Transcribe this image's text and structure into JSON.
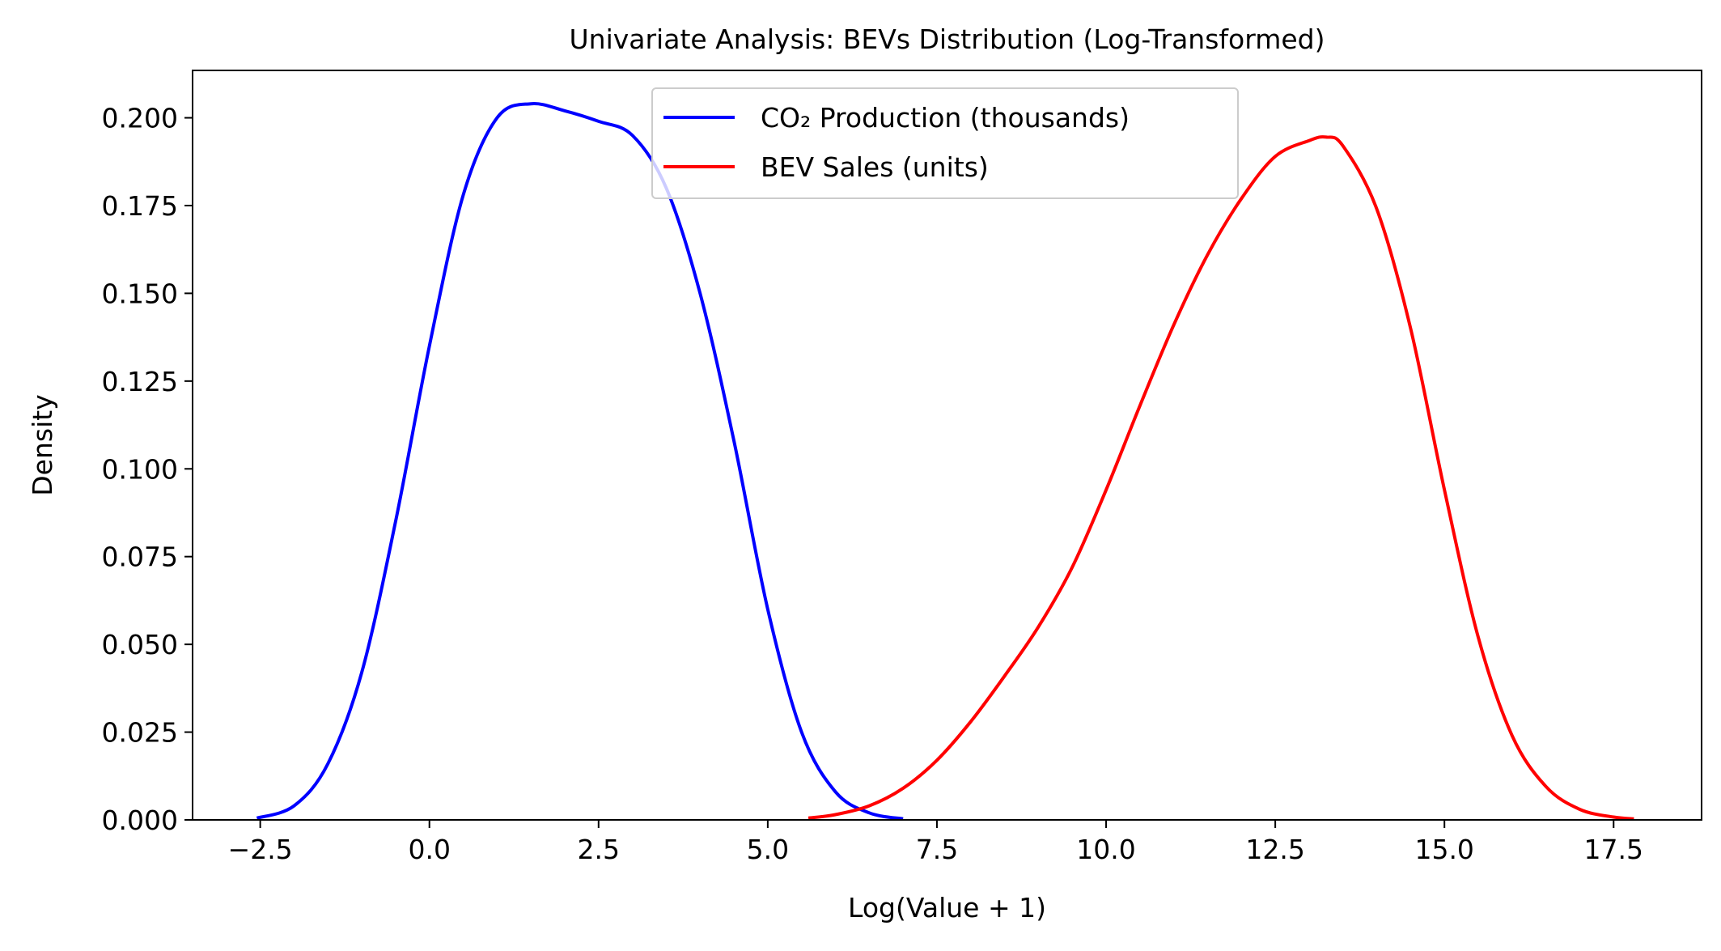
{
  "chart_data": {
    "type": "line",
    "title": "Univariate Analysis: BEVs Distribution (Log-Transformed)",
    "xlabel": "Log(Value + 1)",
    "ylabel": "Density",
    "xlim": [
      -3.5,
      18.8
    ],
    "ylim": [
      0,
      0.2135
    ],
    "x_ticks": [
      -2.5,
      0.0,
      2.5,
      5.0,
      7.5,
      10.0,
      12.5,
      15.0,
      17.5
    ],
    "x_tick_labels": [
      "−2.5",
      "0.0",
      "2.5",
      "5.0",
      "7.5",
      "10.0",
      "12.5",
      "15.0",
      "17.5"
    ],
    "y_ticks": [
      0.0,
      0.025,
      0.05,
      0.075,
      0.1,
      0.125,
      0.15,
      0.175,
      0.2
    ],
    "y_tick_labels": [
      "0.000",
      "0.025",
      "0.050",
      "0.075",
      "0.100",
      "0.125",
      "0.150",
      "0.175",
      "0.200"
    ],
    "grid": false,
    "legend_position": "top-center",
    "series": [
      {
        "name": "CO₂ Production (thousands)",
        "color": "#0000ff",
        "x": [
          -2.55,
          -2.0,
          -1.5,
          -1.0,
          -0.5,
          0.0,
          0.5,
          1.0,
          1.5,
          2.0,
          2.5,
          3.0,
          3.5,
          4.0,
          4.5,
          5.0,
          5.5,
          6.0,
          6.5,
          7.0
        ],
        "y": [
          0.0005,
          0.004,
          0.016,
          0.042,
          0.085,
          0.135,
          0.178,
          0.2,
          0.204,
          0.202,
          0.199,
          0.195,
          0.18,
          0.15,
          0.108,
          0.06,
          0.025,
          0.008,
          0.002,
          0.0003
        ]
      },
      {
        "name": "BEV Sales (units)",
        "color": "#ff0000",
        "x": [
          5.6,
          6.0,
          6.5,
          7.0,
          7.5,
          8.0,
          8.5,
          9.0,
          9.5,
          10.0,
          10.5,
          11.0,
          11.5,
          12.0,
          12.5,
          13.0,
          13.25,
          13.5,
          14.0,
          14.5,
          15.0,
          15.5,
          16.0,
          16.5,
          17.0,
          17.5,
          17.8
        ],
        "y": [
          0.0005,
          0.0015,
          0.004,
          0.009,
          0.017,
          0.028,
          0.041,
          0.055,
          0.072,
          0.094,
          0.118,
          0.141,
          0.161,
          0.177,
          0.189,
          0.1935,
          0.1945,
          0.192,
          0.174,
          0.14,
          0.094,
          0.052,
          0.024,
          0.0095,
          0.003,
          0.0008,
          0.0003
        ]
      }
    ]
  }
}
